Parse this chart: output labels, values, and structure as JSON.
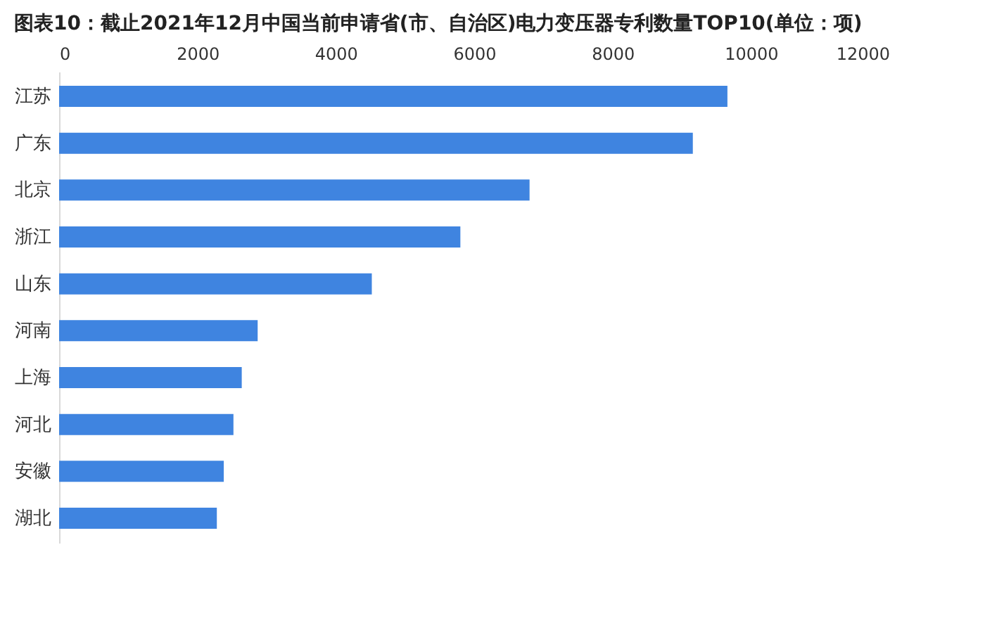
{
  "chart_data": {
    "type": "bar",
    "orientation": "horizontal",
    "title": "图表10：截止2021年12月中国当前申请省(市、自治区)电力变压器专利数量TOP10(单位：项)",
    "categories": [
      "江苏",
      "广东",
      "北京",
      "浙江",
      "山东",
      "河南",
      "上海",
      "河北",
      "安徽",
      "湖北"
    ],
    "values": [
      9660,
      9160,
      6800,
      5800,
      4520,
      2870,
      2640,
      2520,
      2380,
      2280
    ],
    "color": "#3f84e0",
    "xlim": [
      0,
      12000
    ],
    "xticks": [
      0,
      2000,
      4000,
      6000,
      8000,
      10000,
      12000
    ],
    "grid": false
  }
}
